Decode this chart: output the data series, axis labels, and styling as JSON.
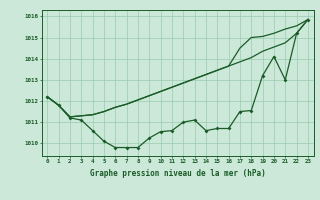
{
  "title": "Graphe pression niveau de la mer (hPa)",
  "background_color": "#cce8d8",
  "grid_color": "#99ccb0",
  "line_color": "#1a5c28",
  "xlim": [
    -0.5,
    23.5
  ],
  "ylim": [
    1009.4,
    1016.3
  ],
  "yticks": [
    1010,
    1011,
    1012,
    1013,
    1014,
    1015,
    1016
  ],
  "xticks": [
    0,
    1,
    2,
    3,
    4,
    5,
    6,
    7,
    8,
    9,
    10,
    11,
    12,
    13,
    14,
    15,
    16,
    17,
    18,
    19,
    20,
    21,
    22,
    23
  ],
  "series1_x": [
    0,
    1,
    2,
    3,
    4,
    5,
    6,
    7,
    8,
    9,
    10,
    11,
    12,
    13,
    14,
    15,
    16,
    17,
    18,
    19,
    20,
    21,
    22,
    23
  ],
  "series1_y": [
    1012.2,
    1011.8,
    1011.2,
    1011.1,
    1010.6,
    1010.1,
    1009.8,
    1009.8,
    1009.8,
    1010.25,
    1010.55,
    1010.6,
    1011.0,
    1011.1,
    1010.6,
    1010.7,
    1010.7,
    1011.5,
    1011.55,
    1013.2,
    1014.1,
    1013.0,
    1015.2,
    1015.85
  ],
  "series2_x": [
    0,
    1,
    2,
    3,
    4,
    5,
    6,
    7,
    8,
    9,
    10,
    11,
    12,
    13,
    14,
    15,
    16,
    17,
    18,
    19,
    20,
    21,
    22,
    23
  ],
  "series2_y": [
    1012.2,
    1011.8,
    1011.25,
    1011.3,
    1011.35,
    1011.5,
    1011.7,
    1011.85,
    1012.05,
    1012.25,
    1012.45,
    1012.65,
    1012.85,
    1013.05,
    1013.25,
    1013.45,
    1013.65,
    1013.85,
    1014.05,
    1014.35,
    1014.55,
    1014.75,
    1015.2,
    1015.85
  ],
  "series3_x": [
    0,
    1,
    2,
    3,
    4,
    5,
    6,
    7,
    8,
    9,
    10,
    11,
    12,
    13,
    14,
    15,
    16,
    17,
    18,
    19,
    20,
    21,
    22,
    23
  ],
  "series3_y": [
    1012.2,
    1011.8,
    1011.25,
    1011.3,
    1011.35,
    1011.5,
    1011.7,
    1011.85,
    1012.05,
    1012.25,
    1012.45,
    1012.65,
    1012.85,
    1013.05,
    1013.25,
    1013.45,
    1013.65,
    1014.5,
    1015.0,
    1015.05,
    1015.2,
    1015.4,
    1015.55,
    1015.85
  ]
}
